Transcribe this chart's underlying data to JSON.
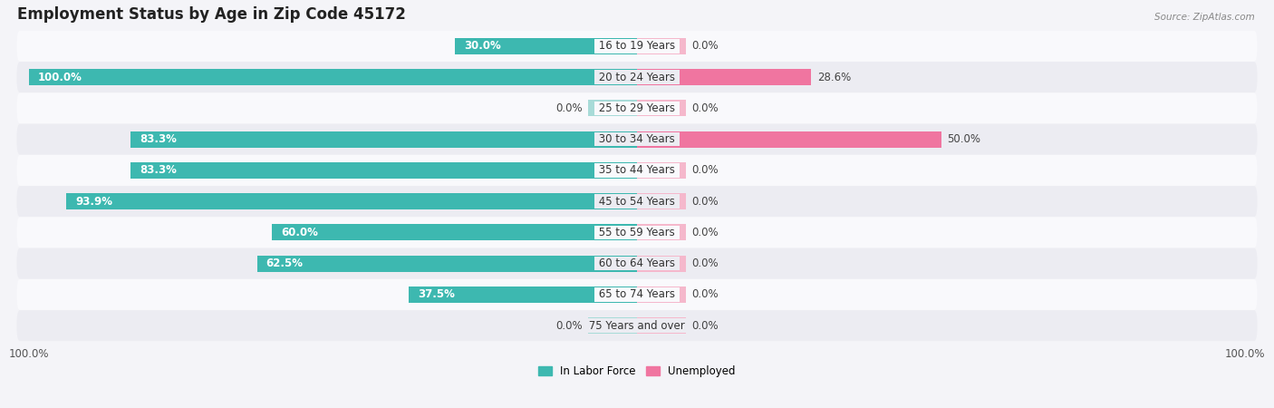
{
  "title": "Employment Status by Age in Zip Code 45172",
  "source": "Source: ZipAtlas.com",
  "categories": [
    "16 to 19 Years",
    "20 to 24 Years",
    "25 to 29 Years",
    "30 to 34 Years",
    "35 to 44 Years",
    "45 to 54 Years",
    "55 to 59 Years",
    "60 to 64 Years",
    "65 to 74 Years",
    "75 Years and over"
  ],
  "in_labor_force": [
    30.0,
    100.0,
    0.0,
    83.3,
    83.3,
    93.9,
    60.0,
    62.5,
    37.5,
    0.0
  ],
  "unemployed": [
    0.0,
    28.6,
    0.0,
    50.0,
    0.0,
    0.0,
    0.0,
    0.0,
    0.0,
    0.0
  ],
  "labor_color": "#3db8b0",
  "labor_color_light": "#a8dbd8",
  "unemployed_color": "#f075a0",
  "unemployed_color_light": "#f5b8cc",
  "bg_color": "#f4f4f8",
  "row_bg_odd": "#f9f9fc",
  "row_bg_even": "#ececf2",
  "bar_height": 0.52,
  "max_val": 100.0,
  "legend_labor": "In Labor Force",
  "legend_unemployed": "Unemployed",
  "title_fontsize": 12,
  "label_fontsize": 8.5,
  "tick_fontsize": 8.5,
  "zero_bar_width": 8.0
}
